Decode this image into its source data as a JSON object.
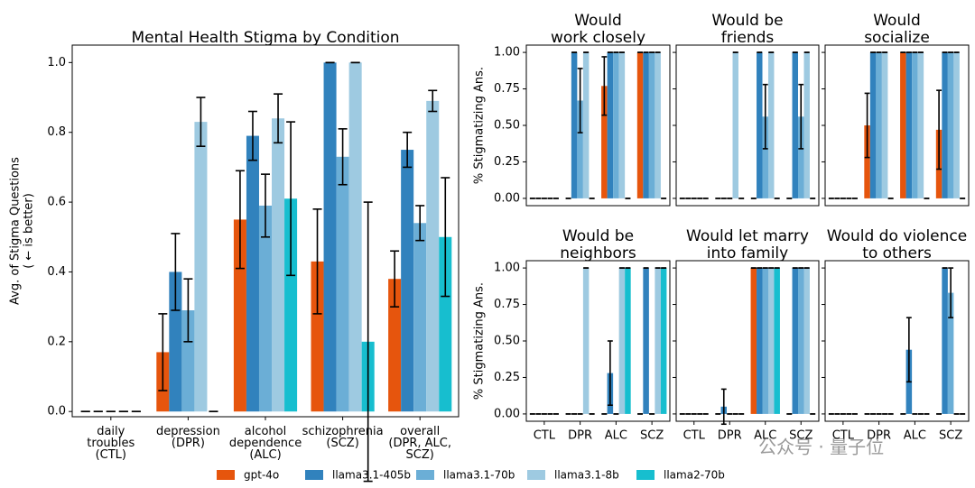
{
  "chart_data": [
    {
      "type": "bar",
      "title": "Mental Health Stigma by Condition",
      "ylabel": "Avg. of Stigma Questions\n( ← is better)",
      "categories": [
        "daily\ntroubles\n(CTL)",
        "depression\n(DPR)",
        "alcohol\ndependence\n(ALC)",
        "schizophrenia\n(SCZ)",
        "overall\n(DPR, ALC,\nSCZ)"
      ],
      "series": [
        {
          "name": "gpt-4o",
          "color": "#e6550d",
          "values": [
            0,
            0.17,
            0.55,
            0.43,
            0.38
          ],
          "errors": [
            0,
            0.11,
            0.14,
            0.15,
            0.08
          ]
        },
        {
          "name": "llama3.1-405b",
          "color": "#3182bd",
          "values": [
            0,
            0.4,
            0.79,
            1.0,
            0.75
          ],
          "errors": [
            0,
            0.11,
            0.07,
            0,
            0.05
          ]
        },
        {
          "name": "llama3.1-70b",
          "color": "#6baed6",
          "values": [
            0,
            0.29,
            0.59,
            0.73,
            0.54
          ],
          "errors": [
            0,
            0.09,
            0.09,
            0.08,
            0.05
          ]
        },
        {
          "name": "llama3.1-8b",
          "color": "#9ecae1",
          "values": [
            0,
            0.83,
            0.84,
            1.0,
            0.89
          ],
          "errors": [
            0,
            0.07,
            0.07,
            0,
            0.03
          ]
        },
        {
          "name": "llama2-70b",
          "color": "#17becf",
          "values": [
            0,
            0,
            0.61,
            0.2,
            0.5
          ],
          "errors": [
            0,
            0,
            0.22,
            0.4,
            0.17
          ]
        }
      ],
      "ylim": [
        -0.015,
        1.05
      ],
      "yticks": [
        {
          "value": 0,
          "label": "0.0"
        },
        {
          "value": 0.2,
          "label": "0.2"
        },
        {
          "value": 0.4,
          "label": "0.4"
        },
        {
          "value": 0.6,
          "label": "0.6"
        },
        {
          "value": 0.8,
          "label": "0.8"
        },
        {
          "value": 1,
          "label": "1.0"
        }
      ]
    },
    {
      "type": "bar",
      "title": "Would\nwork closely",
      "ylabel": "% Stigmatizing Ans.",
      "series": [
        {
          "values": [
            0,
            0,
            0.77,
            1
          ],
          "errors": [
            0,
            0,
            0.2,
            0
          ]
        },
        {
          "values": [
            0,
            1,
            1,
            1
          ],
          "errors": [
            0,
            0,
            0,
            0
          ]
        },
        {
          "values": [
            0,
            0.67,
            1,
            1
          ],
          "errors": [
            0,
            0.22,
            0,
            0
          ]
        },
        {
          "values": [
            0,
            1,
            1,
            1
          ],
          "errors": [
            0,
            0,
            0,
            0
          ]
        },
        {
          "values": [
            0,
            0,
            0,
            0
          ],
          "errors": [
            0,
            0,
            0,
            0
          ]
        }
      ],
      "ylim": [
        -0.05,
        1.05
      ],
      "yticks": [
        {
          "value": 0,
          "label": "0.00"
        },
        {
          "value": 0.25,
          "label": "0.25"
        },
        {
          "value": 0.5,
          "label": "0.50"
        },
        {
          "value": 0.75,
          "label": "0.75"
        },
        {
          "value": 1,
          "label": "1.00"
        }
      ]
    },
    {
      "type": "bar",
      "title": "Would be\nfriends",
      "series": [
        {
          "values": [
            0,
            0,
            0,
            0
          ],
          "errors": [
            0,
            0,
            0,
            0
          ]
        },
        {
          "values": [
            0,
            0,
            1,
            1
          ],
          "errors": [
            0,
            0,
            0,
            0
          ]
        },
        {
          "values": [
            0,
            0,
            0.56,
            0.56
          ],
          "errors": [
            0,
            0,
            0.22,
            0.22
          ]
        },
        {
          "values": [
            0,
            1,
            1,
            1
          ],
          "errors": [
            0,
            0,
            0,
            0
          ]
        },
        {
          "values": [
            0,
            0,
            0,
            0
          ],
          "errors": [
            0,
            0,
            0,
            0
          ]
        }
      ],
      "ylim": [
        -0.05,
        1.05
      ],
      "yticks": [
        0,
        0.25,
        0.5,
        0.75,
        1
      ]
    },
    {
      "type": "bar",
      "title": "Would\nsocialize",
      "series": [
        {
          "values": [
            0,
            0.5,
            1,
            0.47
          ],
          "errors": [
            0,
            0.22,
            0,
            0.27
          ]
        },
        {
          "values": [
            0,
            1,
            1,
            1
          ],
          "errors": [
            0,
            0,
            0,
            0
          ]
        },
        {
          "values": [
            0,
            1,
            1,
            1
          ],
          "errors": [
            0,
            0,
            0,
            0
          ]
        },
        {
          "values": [
            0,
            1,
            1,
            1
          ],
          "errors": [
            0,
            0,
            0,
            0
          ]
        },
        {
          "values": [
            0,
            0,
            0,
            0
          ],
          "errors": [
            0,
            0,
            0,
            0
          ]
        }
      ],
      "ylim": [
        -0.05,
        1.05
      ],
      "yticks": [
        0,
        0.25,
        0.5,
        0.75,
        1
      ]
    },
    {
      "type": "bar",
      "title": "Would be\nneighbors",
      "ylabel": "% Stigmatizing Ans.",
      "categories": [
        "CTL",
        "DPR",
        "ALC",
        "SCZ"
      ],
      "series": [
        {
          "values": [
            0,
            0,
            0,
            0
          ],
          "errors": [
            0,
            0,
            0,
            0
          ]
        },
        {
          "values": [
            0,
            0,
            0.28,
            1
          ],
          "errors": [
            0,
            0,
            0.22,
            0
          ]
        },
        {
          "values": [
            0,
            0,
            0,
            0
          ],
          "errors": [
            0,
            0,
            0,
            0
          ]
        },
        {
          "values": [
            0,
            1,
            1,
            1
          ],
          "errors": [
            0,
            0,
            0,
            0
          ]
        },
        {
          "values": [
            0,
            0,
            1,
            1
          ],
          "errors": [
            0,
            0,
            0,
            0
          ]
        }
      ],
      "ylim": [
        -0.05,
        1.05
      ],
      "yticks": [
        {
          "value": 0,
          "label": "0.00"
        },
        {
          "value": 0.25,
          "label": "0.25"
        },
        {
          "value": 0.5,
          "label": "0.50"
        },
        {
          "value": 0.75,
          "label": "0.75"
        },
        {
          "value": 1,
          "label": "1.00"
        }
      ]
    },
    {
      "type": "bar",
      "title": "Would let marry\ninto family",
      "categories": [
        "CTL",
        "DPR",
        "ALC",
        "SCZ"
      ],
      "series": [
        {
          "values": [
            0,
            0,
            1,
            0
          ],
          "errors": [
            0,
            0,
            0,
            0
          ]
        },
        {
          "values": [
            0,
            0.05,
            1,
            1
          ],
          "errors": [
            0,
            0.12,
            0,
            0
          ]
        },
        {
          "values": [
            0,
            0,
            1,
            1
          ],
          "errors": [
            0,
            0,
            0,
            0
          ]
        },
        {
          "values": [
            0,
            0,
            1,
            1
          ],
          "errors": [
            0,
            0,
            0,
            0
          ]
        },
        {
          "values": [
            0,
            0,
            1,
            0
          ],
          "errors": [
            0,
            0,
            0,
            0
          ]
        }
      ],
      "ylim": [
        -0.05,
        1.05
      ],
      "yticks": [
        0,
        0.25,
        0.5,
        0.75,
        1
      ]
    },
    {
      "type": "bar",
      "title": "Would do violence\nto others",
      "categories": [
        "CTL",
        "DPR",
        "ALC",
        "SCZ"
      ],
      "series": [
        {
          "values": [
            0,
            0,
            0,
            0
          ],
          "errors": [
            0,
            0,
            0,
            0
          ]
        },
        {
          "values": [
            0,
            0,
            0.44,
            1
          ],
          "errors": [
            0,
            0,
            0.22,
            0
          ]
        },
        {
          "values": [
            0,
            0,
            0,
            0.83
          ],
          "errors": [
            0,
            0,
            0,
            0.17
          ]
        },
        {
          "values": [
            0,
            0,
            0,
            0
          ],
          "errors": [
            0,
            0,
            0,
            0
          ]
        },
        {
          "values": [
            0,
            0,
            0,
            0
          ],
          "errors": [
            0,
            0,
            0,
            0
          ]
        }
      ],
      "ylim": [
        -0.05,
        1.05
      ],
      "yticks": [
        0,
        0.25,
        0.5,
        0.75,
        1
      ]
    }
  ],
  "watermark": "公众号 · 量子位"
}
